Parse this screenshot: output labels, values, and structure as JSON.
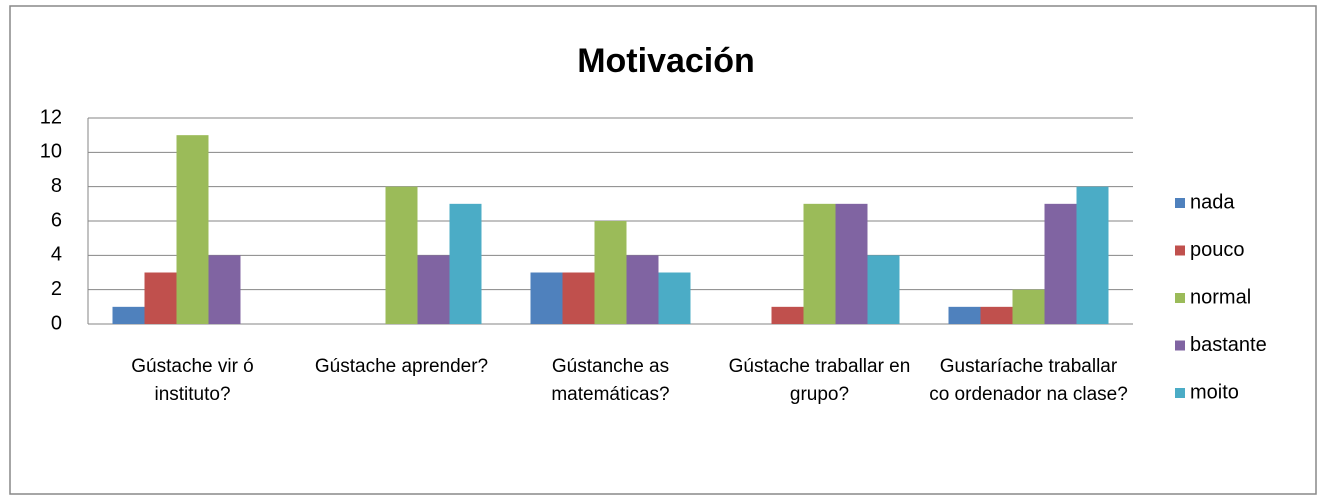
{
  "chart_data": {
    "type": "bar",
    "title": "Motivación",
    "categories": [
      "Gústache vir ó instituto?",
      "Gústache aprender?",
      "Gústanche as matemáticas?",
      "Gústache traballar en grupo?",
      "Gustaríache traballar co ordenador na clase?"
    ],
    "series": [
      {
        "name": "nada",
        "color": "#4f81bd",
        "values": [
          1,
          0,
          3,
          0,
          1
        ]
      },
      {
        "name": "pouco",
        "color": "#c0504d",
        "values": [
          3,
          0,
          3,
          1,
          1
        ]
      },
      {
        "name": "normal",
        "color": "#9bbb59",
        "values": [
          11,
          8,
          6,
          7,
          2
        ]
      },
      {
        "name": "bastante",
        "color": "#8064a2",
        "values": [
          4,
          4,
          4,
          7,
          7
        ]
      },
      {
        "name": "moito",
        "color": "#4bacc6",
        "values": [
          0,
          7,
          3,
          4,
          8
        ]
      }
    ],
    "ylim": [
      0,
      12
    ],
    "yticks": [
      0,
      2,
      4,
      6,
      8,
      10,
      12
    ],
    "grid": true,
    "legend": "right"
  }
}
